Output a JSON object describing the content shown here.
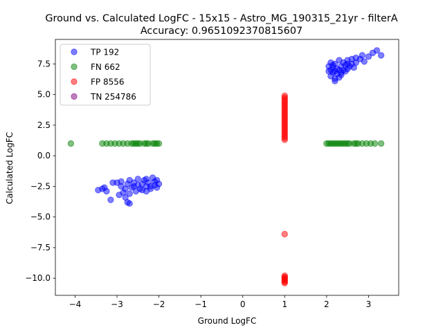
{
  "chart_data": {
    "type": "scatter",
    "title": "Ground vs. Calculated LogFC - 15x15 - Astro_MG_190315_21yr - filterA",
    "subtitle": "Accuracy: 0.9651092370815607",
    "xlabel": "Ground LogFC",
    "ylabel": "Calculated LogFC",
    "xlim": [
      -4.47,
      3.72
    ],
    "ylim": [
      -11.4,
      9.5
    ],
    "xticks": [
      -4,
      -3,
      -2,
      -1,
      0,
      1,
      2,
      3
    ],
    "xtick_labels": [
      "−4",
      "−3",
      "−2",
      "−1",
      "0",
      "1",
      "2",
      "3"
    ],
    "yticks": [
      -10.0,
      -7.5,
      -5.0,
      -2.5,
      0.0,
      2.5,
      5.0,
      7.5
    ],
    "ytick_labels": [
      "−10.0",
      "−7.5",
      "−5.0",
      "−2.5",
      "0.0",
      "2.5",
      "5.0",
      "7.5"
    ],
    "grid": false,
    "legend_position": "top-left",
    "series": [
      {
        "name": "TP 192",
        "color": "#0000ff",
        "points": [
          [
            -3.45,
            -2.8
          ],
          [
            -3.35,
            -2.7
          ],
          [
            -3.3,
            -2.6
          ],
          [
            -3.25,
            -2.9
          ],
          [
            -3.1,
            -2.2
          ],
          [
            -3.15,
            -3.6
          ],
          [
            -3.0,
            -2.2
          ],
          [
            -2.95,
            -3.2
          ],
          [
            -2.9,
            -2.5
          ],
          [
            -2.9,
            -2.1
          ],
          [
            -2.85,
            -3.0
          ],
          [
            -2.8,
            -2.7
          ],
          [
            -2.8,
            -3.4
          ],
          [
            -2.75,
            -2.3
          ],
          [
            -2.75,
            -3.8
          ],
          [
            -2.7,
            -2.0
          ],
          [
            -2.7,
            -3.1
          ],
          [
            -2.7,
            -3.9
          ],
          [
            -2.65,
            -2.6
          ],
          [
            -2.6,
            -2.2
          ],
          [
            -2.55,
            -2.9
          ],
          [
            -2.5,
            -2.4
          ],
          [
            -2.5,
            -1.9
          ],
          [
            -2.45,
            -2.7
          ],
          [
            -2.4,
            -2.3
          ],
          [
            -2.35,
            -2.0
          ],
          [
            -2.3,
            -2.9
          ],
          [
            -2.3,
            -2.5
          ],
          [
            -2.25,
            -2.2
          ],
          [
            -2.2,
            -2.7
          ],
          [
            -2.15,
            -1.8
          ],
          [
            -2.1,
            -2.4
          ],
          [
            -2.1,
            -2.1
          ],
          [
            -2.05,
            -2.6
          ],
          [
            -2.05,
            -2.0
          ],
          [
            -2.2,
            -2.5
          ],
          [
            -2.4,
            -2.8
          ],
          [
            -2.6,
            -2.5
          ],
          [
            -2.0,
            -2.3
          ],
          [
            -2.3,
            -1.9
          ],
          [
            2.05,
            6.9
          ],
          [
            2.05,
            7.3
          ],
          [
            2.1,
            6.5
          ],
          [
            2.1,
            7.0
          ],
          [
            2.1,
            7.6
          ],
          [
            2.15,
            6.8
          ],
          [
            2.15,
            7.2
          ],
          [
            2.2,
            6.3
          ],
          [
            2.2,
            6.9
          ],
          [
            2.2,
            7.5
          ],
          [
            2.25,
            6.7
          ],
          [
            2.25,
            7.1
          ],
          [
            2.3,
            6.4
          ],
          [
            2.3,
            7.0
          ],
          [
            2.3,
            7.8
          ],
          [
            2.35,
            6.8
          ],
          [
            2.35,
            7.3
          ],
          [
            2.4,
            7.0
          ],
          [
            2.4,
            7.6
          ],
          [
            2.45,
            6.9
          ],
          [
            2.45,
            7.4
          ],
          [
            2.5,
            7.1
          ],
          [
            2.5,
            7.8
          ],
          [
            2.55,
            7.3
          ],
          [
            2.6,
            7.5
          ],
          [
            2.6,
            7.9
          ],
          [
            2.65,
            7.2
          ],
          [
            2.7,
            7.6
          ],
          [
            2.8,
            7.9
          ],
          [
            2.85,
            8.2
          ],
          [
            2.9,
            7.7
          ],
          [
            3.0,
            8.1
          ],
          [
            3.1,
            8.4
          ],
          [
            3.2,
            8.6
          ],
          [
            3.3,
            8.2
          ],
          [
            2.2,
            6.1
          ],
          [
            2.15,
            7.4
          ],
          [
            2.35,
            6.6
          ],
          [
            2.5,
            7.5
          ],
          [
            2.7,
            8.0
          ]
        ]
      },
      {
        "name": "FN 662",
        "color": "#008000",
        "points": [
          [
            -4.1,
            1.0
          ],
          [
            -3.35,
            1.0
          ],
          [
            -3.25,
            1.0
          ],
          [
            -3.15,
            1.0
          ],
          [
            -3.05,
            1.0
          ],
          [
            -2.95,
            1.0
          ],
          [
            -2.85,
            1.0
          ],
          [
            -2.75,
            1.0
          ],
          [
            -2.65,
            1.0
          ],
          [
            -2.55,
            1.0
          ],
          [
            -2.45,
            1.0
          ],
          [
            -2.35,
            1.0
          ],
          [
            -2.25,
            1.0
          ],
          [
            -2.15,
            1.0
          ],
          [
            -2.05,
            1.0
          ],
          [
            -2.0,
            1.0
          ],
          [
            -2.6,
            1.0
          ],
          [
            -2.3,
            1.0
          ],
          [
            -2.1,
            1.0
          ],
          [
            -2.5,
            1.0
          ],
          [
            2.0,
            1.0
          ],
          [
            2.05,
            1.0
          ],
          [
            2.15,
            1.0
          ],
          [
            2.25,
            1.0
          ],
          [
            2.35,
            1.0
          ],
          [
            2.45,
            1.0
          ],
          [
            2.55,
            1.0
          ],
          [
            2.65,
            1.0
          ],
          [
            2.75,
            1.0
          ],
          [
            2.85,
            1.0
          ],
          [
            2.95,
            1.0
          ],
          [
            3.05,
            1.0
          ],
          [
            3.15,
            1.0
          ],
          [
            3.3,
            1.0
          ],
          [
            2.1,
            1.0
          ],
          [
            2.2,
            1.0
          ],
          [
            2.3,
            1.0
          ],
          [
            2.4,
            1.0
          ],
          [
            2.5,
            1.0
          ],
          [
            2.7,
            1.0
          ]
        ]
      },
      {
        "name": "FP 8556",
        "color": "#ff0000",
        "points": [
          [
            1.0,
            4.9
          ],
          [
            1.0,
            4.6
          ],
          [
            1.0,
            4.3
          ],
          [
            1.0,
            4.0
          ],
          [
            1.0,
            3.7
          ],
          [
            1.0,
            3.4
          ],
          [
            1.0,
            3.1
          ],
          [
            1.0,
            2.8
          ],
          [
            1.0,
            2.5
          ],
          [
            1.0,
            2.2
          ],
          [
            1.0,
            1.9
          ],
          [
            1.0,
            1.6
          ],
          [
            1.0,
            1.3
          ],
          [
            1.0,
            4.75
          ],
          [
            1.0,
            4.45
          ],
          [
            1.0,
            4.15
          ],
          [
            1.0,
            3.85
          ],
          [
            1.0,
            3.55
          ],
          [
            1.0,
            3.25
          ],
          [
            1.0,
            2.95
          ],
          [
            1.0,
            2.65
          ],
          [
            1.0,
            2.35
          ],
          [
            1.0,
            2.05
          ],
          [
            1.0,
            1.75
          ],
          [
            1.0,
            1.45
          ],
          [
            1.0,
            -6.4
          ],
          [
            1.0,
            -9.8
          ],
          [
            1.0,
            -10.0
          ],
          [
            1.0,
            -10.2
          ],
          [
            1.0,
            -10.4
          ],
          [
            1.0,
            -9.9
          ],
          [
            1.0,
            -10.1
          ],
          [
            1.0,
            -10.3
          ]
        ]
      },
      {
        "name": "TN 254786",
        "color": "#800080",
        "points": []
      }
    ]
  }
}
